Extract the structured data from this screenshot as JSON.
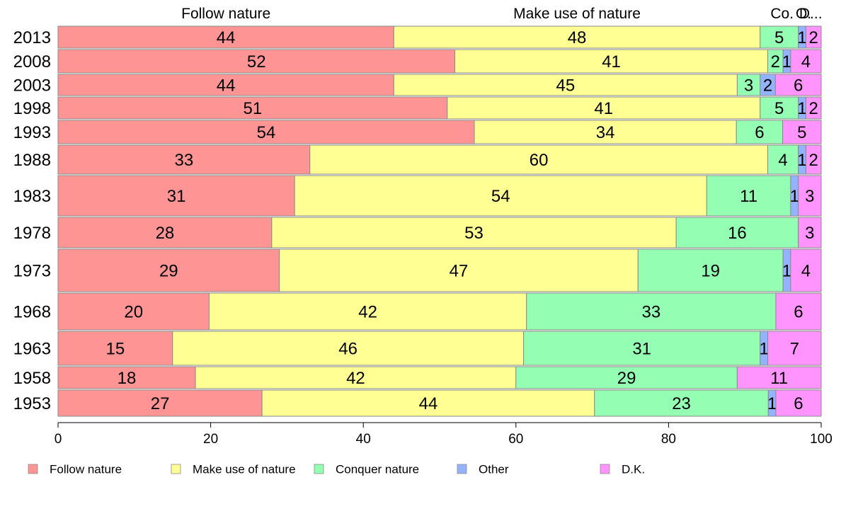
{
  "chart_data": {
    "type": "bar",
    "orientation": "horizontal",
    "stacked": true,
    "categories": [
      "2013",
      "2008",
      "2003",
      "1998",
      "1993",
      "1988",
      "1983",
      "1978",
      "1973",
      "1968",
      "1963",
      "1958",
      "1953"
    ],
    "series": [
      {
        "name": "Follow nature",
        "color": "#ff9494",
        "values": [
          44,
          52,
          44,
          51,
          54,
          33,
          31,
          28,
          29,
          20,
          15,
          18,
          27
        ]
      },
      {
        "name": "Make use of nature",
        "color": "#ffff94",
        "values": [
          48,
          41,
          45,
          41,
          34,
          60,
          54,
          53,
          47,
          42,
          46,
          42,
          44
        ]
      },
      {
        "name": "Conquer nature",
        "color": "#94ffb3",
        "values": [
          5,
          2,
          3,
          5,
          6,
          4,
          11,
          16,
          19,
          33,
          31,
          29,
          23
        ]
      },
      {
        "name": "Other",
        "color": "#94b3ff",
        "values": [
          1,
          1,
          2,
          1,
          0,
          1,
          1,
          0,
          1,
          0,
          1,
          0,
          1
        ]
      },
      {
        "name": "D.K.",
        "color": "#ff94ff",
        "values": [
          2,
          4,
          6,
          2,
          5,
          2,
          3,
          3,
          4,
          6,
          7,
          11,
          6
        ]
      }
    ],
    "top_headers": [
      "Follow nature",
      "Make use of nature",
      "Co.",
      "O.",
      "D..."
    ],
    "x_ticks": [
      "0",
      "20",
      "40",
      "60",
      "80",
      "100"
    ],
    "xlim": [
      0,
      100
    ],
    "legend_position": "bottom",
    "grid": false
  }
}
